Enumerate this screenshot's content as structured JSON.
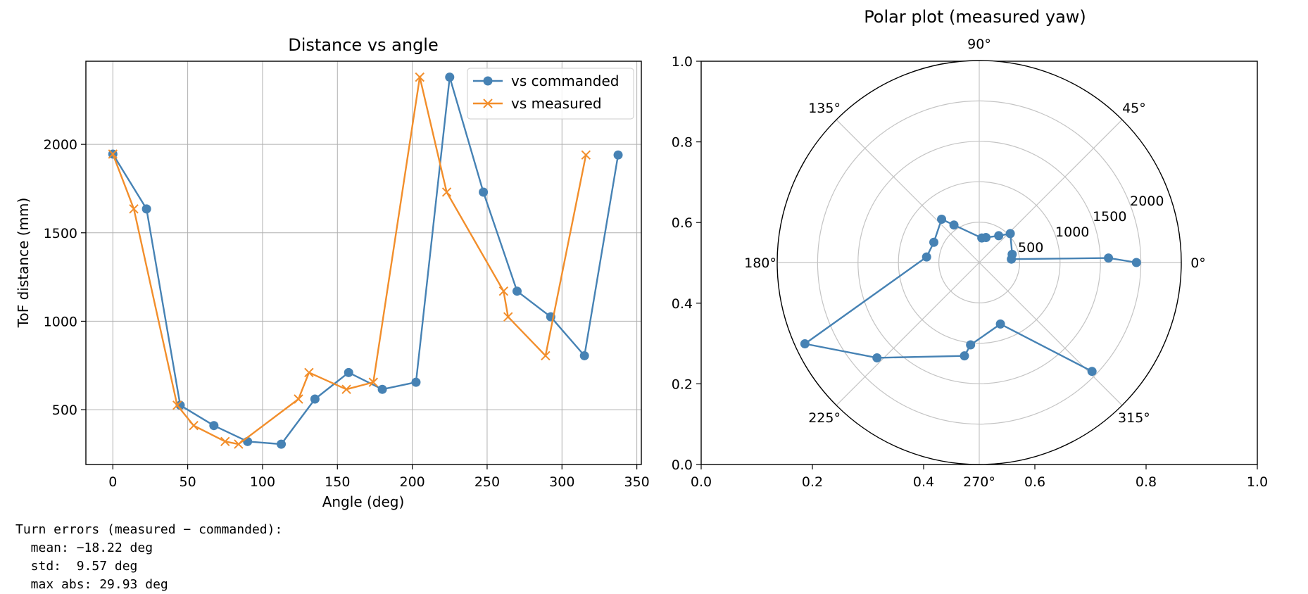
{
  "chart_data": [
    {
      "type": "line",
      "title": "Distance vs angle",
      "xlabel": "Angle (deg)",
      "ylabel": "ToF distance (mm)",
      "xlim": [
        -18,
        353
      ],
      "ylim": [
        190,
        2470
      ],
      "xticks": [
        0,
        50,
        100,
        150,
        200,
        250,
        300,
        350
      ],
      "yticks": [
        500,
        1000,
        1500,
        2000
      ],
      "grid": true,
      "legend": "top-right",
      "series": [
        {
          "name": "vs commanded",
          "marker": "circle",
          "color": "#4682b4",
          "x": [
            0,
            22.5,
            45,
            67.5,
            90,
            112.5,
            135,
            157.5,
            180,
            202.5,
            225,
            247.5,
            270,
            292.5,
            315,
            337.5
          ],
          "y": [
            1945,
            1635,
            525,
            410,
            320,
            305,
            560,
            710,
            615,
            655,
            2380,
            1730,
            1170,
            1025,
            805,
            1940
          ]
        },
        {
          "name": "vs measured",
          "marker": "x",
          "color": "#f28e2b",
          "x": [
            0,
            14,
            43,
            54,
            75,
            84,
            124,
            131,
            156,
            174,
            205,
            223,
            261,
            264,
            289,
            316
          ],
          "y": [
            1945,
            1635,
            525,
            410,
            320,
            305,
            560,
            710,
            615,
            655,
            2380,
            1730,
            1170,
            1025,
            805,
            1940
          ]
        }
      ]
    },
    {
      "type": "polar",
      "title": "Polar plot (measured yaw)",
      "angle_ticks": [
        "0°",
        "45°",
        "90°",
        "135°",
        "180°",
        "225°",
        "270°",
        "315°"
      ],
      "radial_ticks": [
        "500",
        "1000",
        "1500",
        "2000"
      ],
      "rmax": 2500,
      "cartesian_xticks": [
        "0.0",
        "0.2",
        "0.4",
        "0.6",
        "0.8",
        "1.0"
      ],
      "cartesian_yticks": [
        "0.0",
        "0.2",
        "0.4",
        "0.6",
        "0.8",
        "1.0"
      ],
      "series": [
        {
          "color": "#4682b4",
          "theta_deg": [
            0,
            2,
            6,
            14,
            43,
            54,
            75,
            84,
            124,
            131,
            156,
            174,
            205,
            223,
            261,
            264,
            289,
            316
          ],
          "r": [
            1945,
            1600,
            400,
            420,
            525,
            410,
            320,
            305,
            560,
            710,
            615,
            655,
            2380,
            1730,
            1170,
            1025,
            805,
            1940
          ]
        }
      ]
    }
  ],
  "console": {
    "header": "Turn errors (measured − commanded):",
    "mean": "  mean: −18.22 deg",
    "std": "  std:  9.57 deg",
    "maxabs": "  max abs: 29.93 deg"
  }
}
